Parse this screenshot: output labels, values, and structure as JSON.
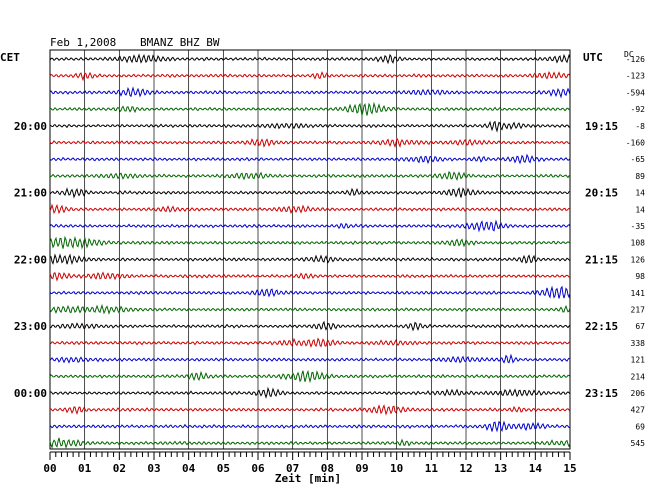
{
  "header": {
    "date": "Feb 1,2008",
    "station": "BMANZ BHZ BW",
    "left_tz": "CET",
    "right_tz": "UTC",
    "dc_label": "DC"
  },
  "chart_data": {
    "type": "line",
    "title": "Feb 1,2008   BMANZ BHZ BW",
    "xlabel": "Zeit [min]",
    "xlim": [
      0,
      15
    ],
    "x_ticks": [
      "00",
      "01",
      "02",
      "03",
      "04",
      "05",
      "06",
      "07",
      "08",
      "09",
      "10",
      "11",
      "12",
      "13",
      "14",
      "15"
    ],
    "grid": true,
    "trace_colors": [
      "#000000",
      "#cc0000",
      "#0000cc",
      "#006600"
    ],
    "left_time_labels": [
      {
        "trace": 4,
        "label": "20:00"
      },
      {
        "trace": 8,
        "label": "21:00"
      },
      {
        "trace": 12,
        "label": "22:00"
      },
      {
        "trace": 16,
        "label": "23:00"
      },
      {
        "trace": 20,
        "label": "00:00"
      }
    ],
    "right_time_labels": [
      {
        "trace": 4,
        "label": "19:15"
      },
      {
        "trace": 8,
        "label": "20:15"
      },
      {
        "trace": 12,
        "label": "21:15"
      },
      {
        "trace": 16,
        "label": "22:15"
      },
      {
        "trace": 20,
        "label": "23:15"
      }
    ],
    "dc_offsets": [
      "-126",
      "-123",
      "-594",
      "-92",
      "-8",
      "-160",
      "-65",
      "89",
      "14",
      "14",
      "-35",
      "108",
      "126",
      "98",
      "141",
      "217",
      "67",
      "338",
      "121",
      "214",
      "206",
      "427",
      "69",
      "545"
    ]
  },
  "colors": {
    "grid": "#000000",
    "background": "#ffffff"
  }
}
